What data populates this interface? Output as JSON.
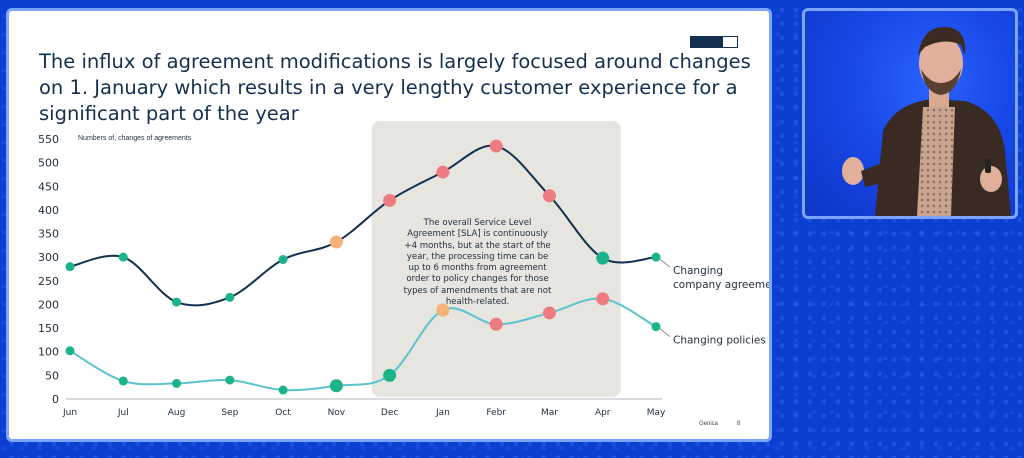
{
  "slide": {
    "title": "The influx of agreement modifications is largely focused around changes on 1. January which results in a very lengthy customer experience for a significant part of the year",
    "progress_fraction": 0.7,
    "footer_brand": "Genica",
    "page_number": "8"
  },
  "callout": {
    "text": "The overall Service Level Agreement [SLA] is continuously +4 months, but at the start of the year, the processing time can be up to 6 months from agreement order to policy changes for those types of amendments that are not health-related."
  },
  "chart_data": {
    "type": "line",
    "title": "",
    "ylabel": "Numbers of, changes of agreements",
    "xlabel": "",
    "categories": [
      "Jun",
      "Jul",
      "Aug",
      "Sep",
      "Oct",
      "Nov",
      "Dec",
      "Jan",
      "Febr",
      "Mar",
      "Apr",
      "May"
    ],
    "ylim": [
      0,
      550
    ],
    "yticks": [
      0,
      50,
      100,
      150,
      200,
      250,
      300,
      350,
      400,
      450,
      500,
      550
    ],
    "grid": false,
    "series": [
      {
        "name": "Changing company agreements",
        "label_shown": "Changing company agreement",
        "color": "#14304f",
        "values": [
          280,
          300,
          205,
          215,
          295,
          332,
          420,
          480,
          535,
          430,
          298,
          300
        ],
        "marker_colors": [
          "#1db38a",
          "#1db38a",
          "#1db38a",
          "#1db38a",
          "#1db38a",
          "#f7b27a",
          "#ef7b82",
          "#ef7b82",
          "#ef7b82",
          "#ef7b82",
          "#1db38a",
          "#1db38a"
        ]
      },
      {
        "name": "Changing policies",
        "label_shown": "Changing policies",
        "color": "#5cc3cc",
        "values": [
          102,
          38,
          33,
          40,
          19,
          28,
          50,
          188,
          158,
          182,
          212,
          153
        ],
        "marker_colors": [
          "#1db38a",
          "#1db38a",
          "#1db38a",
          "#1db38a",
          "#1db38a",
          "#1db38a",
          "#1db38a",
          "#f7b27a",
          "#ef7b82",
          "#ef7b82",
          "#ef7b82",
          "#1db38a"
        ]
      }
    ],
    "highlight_range": [
      "Dec",
      "Apr"
    ]
  },
  "colors": {
    "background": "#0a3fd0",
    "frame_border": "#7aa6ff",
    "callout_bg": "#e6e5df",
    "axis_text": "#1f2d3d"
  }
}
